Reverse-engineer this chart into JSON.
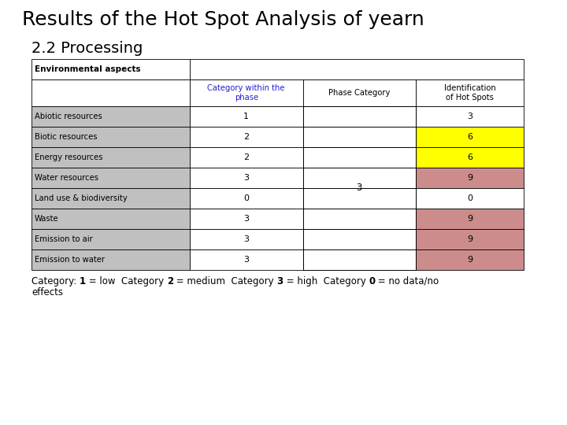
{
  "title": "Results of the Hot Spot Analysis of yearn",
  "subtitle": "2.2 Processing",
  "rows": [
    [
      "Abiotic resources",
      "1",
      "3"
    ],
    [
      "Biotic resources",
      "2",
      "6"
    ],
    [
      "Energy resources",
      "2",
      "6"
    ],
    [
      "Water resources",
      "3",
      "9"
    ],
    [
      "Land use & biodiversity",
      "0",
      "0"
    ],
    [
      "Waste",
      "3",
      "9"
    ],
    [
      "Emission to air",
      "3",
      "9"
    ],
    [
      "Emission to water",
      "3",
      "9"
    ]
  ],
  "id_hotspot_colors": [
    "#ffffff",
    "#ffff00",
    "#ffff00",
    "#cd8c8c",
    "#ffffff",
    "#cd8c8c",
    "#cd8c8c",
    "#cd8c8c"
  ],
  "col_header_color": "#2222cc",
  "background_color": "#ffffff",
  "title_fontsize": 18,
  "subtitle_fontsize": 14,
  "footer_line1": "Category: ",
  "footer_line2": "effects",
  "phase_category_value": "3",
  "phase_category_row": 3
}
